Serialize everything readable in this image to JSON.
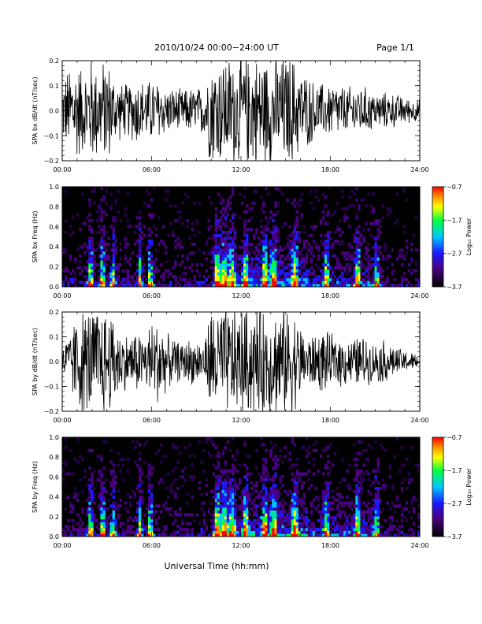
{
  "header": {
    "title": "2010/10/24   00:00−24:00 UT",
    "page": "Page 1/1"
  },
  "xlabel": "Universal Time (hh:mm)",
  "time_ticks": [
    "00:00",
    "06:00",
    "12:00",
    "18:00",
    "24:00"
  ],
  "chart_data": [
    {
      "type": "line",
      "ylabel": "SPA bx dB/dt (nT/sec)",
      "xlim": [
        0,
        24
      ],
      "ylim": [
        -0.2,
        0.2
      ],
      "yticks": [
        "0.2",
        "0.1",
        "0.0",
        "−0.1",
        "−0.2"
      ],
      "envelope": {
        "x_hours": [
          0,
          0.5,
          1,
          1.5,
          2,
          2.5,
          3,
          3.5,
          4,
          4.5,
          5,
          5.5,
          6,
          6.5,
          7,
          7.5,
          8,
          8.5,
          9,
          9.5,
          10,
          10.5,
          11,
          11.5,
          12,
          12.5,
          13,
          13.5,
          14,
          14.5,
          15,
          15.5,
          16,
          16.5,
          17,
          17.5,
          18,
          18.5,
          19,
          19.5,
          20,
          20.5,
          21,
          21.5,
          22,
          22.5,
          23,
          23.5,
          24
        ],
        "amplitude": [
          0.13,
          0.2,
          0.22,
          0.18,
          0.24,
          0.2,
          0.24,
          0.15,
          0.12,
          0.12,
          0.15,
          0.13,
          0.14,
          0.13,
          0.1,
          0.1,
          0.09,
          0.1,
          0.1,
          0.11,
          0.24,
          0.24,
          0.24,
          0.24,
          0.24,
          0.24,
          0.24,
          0.24,
          0.24,
          0.24,
          0.24,
          0.24,
          0.18,
          0.16,
          0.12,
          0.12,
          0.12,
          0.12,
          0.1,
          0.11,
          0.11,
          0.1,
          0.08,
          0.08,
          0.08,
          0.07,
          0.06,
          0.05,
          0.05
        ]
      }
    },
    {
      "type": "heatmap",
      "ylabel": "SPA bx Freq (Hz)",
      "xlim": [
        0,
        24
      ],
      "ylim": [
        0.0,
        1.0
      ],
      "yticks": [
        "1.0",
        "0.8",
        "0.6",
        "0.4",
        "0.2",
        "0.0"
      ],
      "colorbar": {
        "label": "Log₁₀ Power",
        "ticks": [
          "−0.7",
          "−1.7",
          "−2.7",
          "−3.7"
        ],
        "range": [
          -3.7,
          -0.7
        ]
      },
      "bursts_hours": [
        1.9,
        2.7,
        3.4,
        5.2,
        5.9,
        10.4,
        10.9,
        11.4,
        12.3,
        13.6,
        14.2,
        15.6,
        17.7,
        19.8,
        21.1
      ]
    },
    {
      "type": "line",
      "ylabel": "SPA by dB/dt (nT/sec)",
      "xlim": [
        0,
        24
      ],
      "ylim": [
        -0.2,
        0.2
      ],
      "yticks": [
        "0.2",
        "0.1",
        "0.0",
        "−0.1",
        "−0.2"
      ],
      "envelope": {
        "x_hours": [
          0,
          0.5,
          1,
          1.5,
          2,
          2.5,
          3,
          3.5,
          4,
          4.5,
          5,
          5.5,
          6,
          6.5,
          7,
          7.5,
          8,
          8.5,
          9,
          9.5,
          10,
          10.5,
          11,
          11.5,
          12,
          12.5,
          13,
          13.5,
          14,
          14.5,
          15,
          15.5,
          16,
          16.5,
          17,
          17.5,
          18,
          18.5,
          19,
          19.5,
          20,
          20.5,
          21,
          21.5,
          22,
          22.5,
          23,
          23.5,
          24
        ],
        "amplitude": [
          0.08,
          0.12,
          0.22,
          0.24,
          0.24,
          0.24,
          0.24,
          0.2,
          0.13,
          0.12,
          0.14,
          0.12,
          0.18,
          0.2,
          0.12,
          0.1,
          0.08,
          0.1,
          0.1,
          0.08,
          0.24,
          0.24,
          0.24,
          0.24,
          0.24,
          0.24,
          0.24,
          0.24,
          0.24,
          0.24,
          0.24,
          0.24,
          0.16,
          0.12,
          0.12,
          0.14,
          0.12,
          0.11,
          0.11,
          0.1,
          0.12,
          0.1,
          0.08,
          0.1,
          0.08,
          0.06,
          0.05,
          0.04,
          0.03
        ]
      }
    },
    {
      "type": "heatmap",
      "ylabel": "SPA by Freq (Hz)",
      "xlim": [
        0,
        24
      ],
      "ylim": [
        0.0,
        1.0
      ],
      "yticks": [
        "1.0",
        "0.8",
        "0.6",
        "0.4",
        "0.2",
        "0.0"
      ],
      "colorbar": {
        "label": "Log₁₀ Power",
        "ticks": [
          "−0.7",
          "−1.7",
          "−2.7",
          "−3.7"
        ],
        "range": [
          -3.7,
          -0.7
        ]
      },
      "bursts_hours": [
        1.9,
        2.7,
        3.4,
        5.2,
        5.9,
        10.4,
        10.9,
        11.4,
        12.3,
        13.6,
        14.2,
        15.6,
        17.7,
        19.8,
        21.1
      ]
    }
  ]
}
